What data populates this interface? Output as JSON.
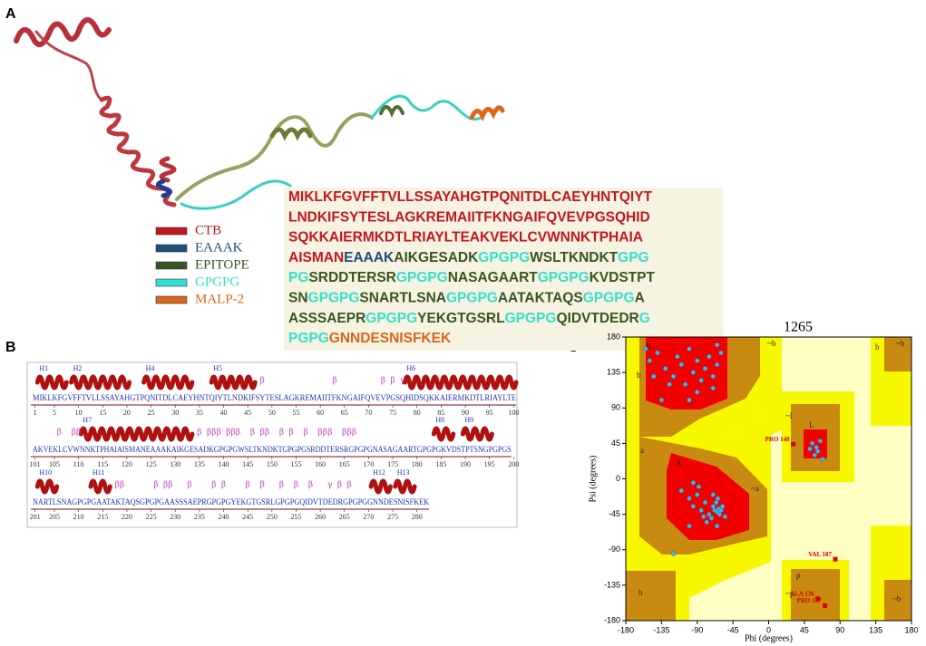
{
  "panel_labels": [
    "A",
    "B",
    "C"
  ],
  "legend": [
    {
      "label": "CTB",
      "color": "#c0181f"
    },
    {
      "label": "EAAAK",
      "color": "#1f4e79"
    },
    {
      "label": "EPITOPE",
      "color": "#375623"
    },
    {
      "label": "GPGPG",
      "color": "#33e0cc"
    },
    {
      "label": "MALP-2",
      "color": "#d9661a"
    }
  ],
  "sequence_lines": [
    [
      {
        "text": "MIKLKFGVFFTVLLSSAYAHGTPQNITDLCAEYHNTQIYT",
        "color": "#c0181f"
      }
    ],
    [
      {
        "text": "LNDKIFSYTESLAGKREMAIITFKNGAIFQVEVPGSQHID",
        "color": "#c0181f"
      }
    ],
    [
      {
        "text": "SQKKAIERMKDTLRIAYLTEAKVEKLCVWNNKTPHAIA",
        "color": "#c0181f"
      }
    ],
    [
      {
        "text": "AISMAN",
        "color": "#c0181f"
      },
      {
        "text": "EAAAK",
        "color": "#1f4e79"
      },
      {
        "text": "AIKGESADK",
        "color": "#375623"
      },
      {
        "text": "GPGPG",
        "color": "#33e0cc"
      },
      {
        "text": "WSLTKNDKT",
        "color": "#375623"
      },
      {
        "text": "GPG",
        "color": "#33e0cc"
      }
    ],
    [
      {
        "text": "PG",
        "color": "#33e0cc"
      },
      {
        "text": "SRDDTERSR",
        "color": "#375623"
      },
      {
        "text": "GPGPG",
        "color": "#33e0cc"
      },
      {
        "text": "NASAGAART",
        "color": "#375623"
      },
      {
        "text": "GPGPG",
        "color": "#33e0cc"
      },
      {
        "text": "KVDSTPT",
        "color": "#375623"
      }
    ],
    [
      {
        "text": "SN",
        "color": "#375623"
      },
      {
        "text": "GPGPG",
        "color": "#33e0cc"
      },
      {
        "text": "SNARTLSNA",
        "color": "#375623"
      },
      {
        "text": "GPGPG",
        "color": "#33e0cc"
      },
      {
        "text": "AATAKTAQS",
        "color": "#375623"
      },
      {
        "text": "GPGPG",
        "color": "#33e0cc"
      },
      {
        "text": "A",
        "color": "#375623"
      }
    ],
    [
      {
        "text": "ASSSAEPR",
        "color": "#375623"
      },
      {
        "text": "GPGPG",
        "color": "#33e0cc"
      },
      {
        "text": "YEKGTGSRL",
        "color": "#375623"
      },
      {
        "text": "GPGPG",
        "color": "#33e0cc"
      },
      {
        "text": "QIDVTDEDR",
        "color": "#375623"
      },
      {
        "text": "G",
        "color": "#33e0cc"
      }
    ],
    [
      {
        "text": "PGPG",
        "color": "#33e0cc"
      },
      {
        "text": "GNNDESNISFKEK",
        "color": "#d9661a"
      }
    ]
  ],
  "panel_b": {
    "rows": [
      {
        "start": 1,
        "sequence": "MIKLKFGVFFTVLLSSAYAHGTPQNITDLCAEYHNTQIYTLNDKIFSYTESLAGKREMAIITFKNGAIFQVEVPGSQHIDSQKKAIERMKDTLRIAYLTE",
        "ticks": [
          1,
          5,
          10,
          15,
          20,
          25,
          30,
          35,
          40,
          45,
          50,
          55,
          60,
          65,
          70,
          75,
          80,
          85,
          90,
          95,
          100
        ]
      },
      {
        "start": 101,
        "sequence": "AKVEKLCVWNNKTPHAIAISMANEAAAKAIKGESADKGPGPGWSLTKNDKTGPGPGSRDDTERSRGPGPGNASAGAARTGPGPGKVDSTPTSNGPGPGS",
        "ticks": [
          101,
          105,
          110,
          115,
          120,
          125,
          130,
          135,
          140,
          145,
          150,
          155,
          160,
          165,
          170,
          175,
          180,
          185,
          190,
          195,
          200
        ]
      },
      {
        "start": 201,
        "sequence": "NARTLSNAGPGPGAATAKTAQSGPGPGAASSSAEPRGPGPGYEKGTGSRLGPGPGQIDVTDEDRGPGPGGNNDESNISFKEK",
        "ticks": [
          201,
          205,
          210,
          215,
          220,
          225,
          230,
          235,
          240,
          245,
          250,
          255,
          260,
          265,
          270,
          275,
          280
        ]
      }
    ],
    "helices": [
      {
        "label": "H1",
        "start": 2,
        "end": 7
      },
      {
        "label": "H2",
        "start": 9,
        "end": 20
      },
      {
        "label": "H4",
        "start": 24,
        "end": 33
      },
      {
        "label": "H5",
        "start": 38,
        "end": 46
      },
      {
        "label": "H6",
        "start": 78,
        "end": 100
      },
      {
        "label": "H7",
        "start": 111,
        "end": 133
      },
      {
        "label": "H8",
        "start": 184,
        "end": 187
      },
      {
        "label": "H9",
        "start": 190,
        "end": 195
      },
      {
        "label": "H10",
        "start": 202,
        "end": 205
      },
      {
        "label": "H11",
        "start": 213,
        "end": 216
      },
      {
        "label": "H12",
        "start": 271,
        "end": 274
      },
      {
        "label": "H13",
        "start": 276,
        "end": 279
      }
    ],
    "beta_symbol": "β",
    "betas": [
      48,
      63,
      73,
      75,
      106,
      109,
      110,
      135,
      137,
      138,
      139,
      141,
      142,
      143,
      146,
      148,
      149,
      152,
      154,
      157,
      160,
      161,
      162,
      165,
      166,
      167,
      218,
      219,
      226,
      228,
      229,
      233,
      238,
      240,
      245,
      248,
      252,
      255,
      258,
      264,
      266
    ],
    "gamma_symbol": "γ",
    "gammas": [
      77,
      262
    ]
  },
  "panel_c": {
    "title": "1265",
    "x_label": "Phi (degrees)",
    "y_label": "Psi (degrees)",
    "xlim": [
      -180,
      180
    ],
    "ylim": [
      -180,
      180
    ],
    "xticks": [
      -180,
      -135,
      -90,
      -45,
      0,
      45,
      90,
      135,
      180
    ],
    "yticks": [
      -180,
      -135,
      -90,
      -45,
      0,
      45,
      90,
      135,
      180
    ],
    "regions": [
      "B",
      "b",
      "A",
      "a",
      "~b",
      "~a",
      "L",
      "~l",
      "p",
      "~p",
      "b",
      "~b",
      "b",
      "~b"
    ],
    "points": {
      "phi": [
        -150,
        -140,
        -130,
        -120,
        -115,
        -110,
        -105,
        -100,
        -95,
        -90,
        -85,
        -80,
        -75,
        -70,
        -65,
        -60,
        -145,
        -125,
        -135,
        -100,
        -70,
        -65,
        -155,
        -90,
        -110,
        -100,
        -95,
        -90,
        -85,
        -80,
        -75,
        -70,
        -68,
        -65,
        -63,
        -62,
        -60,
        -58,
        -66,
        -72,
        -78,
        -82,
        -88,
        -95,
        -55,
        -64,
        -70,
        -100,
        -120,
        -65,
        55,
        60,
        62,
        58,
        65,
        52,
        68
      ],
      "psi": [
        150,
        160,
        140,
        130,
        155,
        145,
        120,
        165,
        135,
        150,
        125,
        140,
        155,
        130,
        145,
        160,
        130,
        120,
        100,
        100,
        115,
        170,
        165,
        110,
        -15,
        -25,
        -35,
        -20,
        -40,
        -30,
        -45,
        -35,
        -40,
        -42,
        -38,
        -45,
        -40,
        -35,
        -30,
        -50,
        -55,
        -48,
        -10,
        -5,
        -48,
        -25,
        -20,
        -60,
        -95,
        -60,
        45,
        40,
        35,
        30,
        48,
        38,
        25
      ]
    },
    "residues": [
      {
        "label": "PRO 148",
        "phi": 31,
        "psi": 44
      },
      {
        "label": "VAL 187",
        "phi": 84,
        "psi": -102
      },
      {
        "label": "ALA 136",
        "phi": 62,
        "psi": -152
      },
      {
        "label": "PRO 147",
        "phi": 71,
        "psi": -161
      }
    ]
  }
}
